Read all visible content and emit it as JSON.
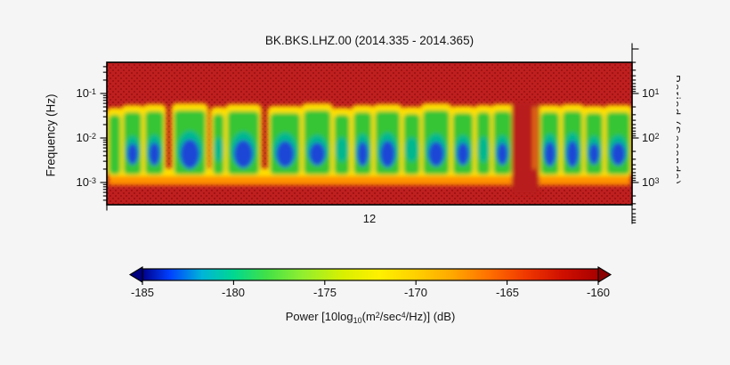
{
  "title": "BK.BKS.LHZ.00 (2014.335 - 2014.365)",
  "axes": {
    "freq": {
      "label": "Frequency (Hz)",
      "ticks": [
        {
          "base": "10",
          "exp": "-1"
        },
        {
          "base": "10",
          "exp": "-2"
        },
        {
          "base": "10",
          "exp": "-3"
        }
      ]
    },
    "period": {
      "label": "Period (Seconds)",
      "ticks": [
        {
          "base": "10",
          "exp": "1"
        },
        {
          "base": "10",
          "exp": "2"
        },
        {
          "base": "10",
          "exp": "3"
        }
      ]
    },
    "time": {
      "tick_label": "12"
    }
  },
  "colorbar": {
    "ticks": [
      "-185",
      "-180",
      "-175",
      "-170",
      "-165",
      "-160"
    ],
    "label_parts": {
      "p1": "Power [10log",
      "sub": "10",
      "p2": "(m",
      "sup1": "2",
      "p3": "/sec",
      "sup2": "4",
      "p4": "/Hz)] (dB)"
    }
  },
  "chart_data": {
    "type": "heatmap",
    "subtype": "seismic-psd-spectrogram",
    "title": "BK.BKS.LHZ.00 (2014.335 - 2014.365)",
    "x_range_decimal_year": [
      2014.335,
      2014.365
    ],
    "x_tick_label": "12",
    "ylabel_left": "Frequency (Hz)",
    "y_left_log_ticks_hz": [
      0.1,
      0.01,
      0.001
    ],
    "y_left_range_hz": [
      0.0003,
      0.5
    ],
    "ylabel_right": "Period (Seconds)",
    "y_right_log_ticks_s": [
      10,
      100,
      1000
    ],
    "colorbar_label": "Power [10log10(m^2/sec^4/Hz)] (dB)",
    "colorbar_ticks_db": [
      -185,
      -180,
      -175,
      -170,
      -165,
      -160
    ],
    "colormap": "jet",
    "colorbar_extend": "both",
    "background_power_db": -160,
    "quiet_band_freq_hz": [
      0.001,
      0.035
    ],
    "quiet_band_power_db": [
      -185,
      -172
    ],
    "colors": {
      "page_bg": "#f5f5f5",
      "red_bg": "#bf1f1f",
      "red_dark": "#a21414",
      "yellow": "#ffdf00",
      "orange": "#ff9100",
      "green": "#35c535",
      "teal": "#00b890",
      "blue": "#1b46d6",
      "cb_left_arrow": "#000080",
      "cb_right_arrow": "#8b0000",
      "frame": "#000000"
    },
    "colormap_stops": [
      [
        0.0,
        "#000089"
      ],
      [
        0.06,
        "#0040ff"
      ],
      [
        0.13,
        "#00b4d8"
      ],
      [
        0.2,
        "#00d890"
      ],
      [
        0.27,
        "#40e048"
      ],
      [
        0.35,
        "#90ee30"
      ],
      [
        0.44,
        "#d8f000"
      ],
      [
        0.52,
        "#fff000"
      ],
      [
        0.6,
        "#ffd000"
      ],
      [
        0.68,
        "#ffa800"
      ],
      [
        0.76,
        "#ff7000"
      ],
      [
        0.84,
        "#f03800"
      ],
      [
        0.92,
        "#d01000"
      ],
      [
        1.0,
        "#a80000"
      ]
    ],
    "segments": [
      {
        "x0": 0.004,
        "x1": 0.026,
        "b": 0.35,
        "t": 56
      },
      {
        "x0": 0.032,
        "x1": 0.066,
        "b": 0.55,
        "t": 53
      },
      {
        "x0": 0.073,
        "x1": 0.108,
        "b": 0.65,
        "t": 52
      },
      {
        "x0": 0.128,
        "x1": 0.188,
        "b": 0.95,
        "t": 51
      },
      {
        "x0": 0.202,
        "x1": 0.223,
        "b": 0.45,
        "t": 55
      },
      {
        "x0": 0.23,
        "x1": 0.29,
        "b": 0.88,
        "t": 52
      },
      {
        "x0": 0.311,
        "x1": 0.368,
        "b": 0.8,
        "t": 54
      },
      {
        "x0": 0.375,
        "x1": 0.426,
        "b": 0.62,
        "t": 51
      },
      {
        "x0": 0.433,
        "x1": 0.462,
        "b": 0.45,
        "t": 56
      },
      {
        "x0": 0.47,
        "x1": 0.504,
        "b": 0.72,
        "t": 53
      },
      {
        "x0": 0.511,
        "x1": 0.558,
        "b": 0.82,
        "t": 52
      },
      {
        "x0": 0.565,
        "x1": 0.596,
        "b": 0.45,
        "t": 55
      },
      {
        "x0": 0.602,
        "x1": 0.652,
        "b": 0.72,
        "t": 51
      },
      {
        "x0": 0.659,
        "x1": 0.697,
        "b": 0.62,
        "t": 54
      },
      {
        "x0": 0.704,
        "x1": 0.73,
        "b": 0.5,
        "t": 53
      },
      {
        "x0": 0.736,
        "x1": 0.77,
        "b": 0.6,
        "t": 52
      },
      {
        "x0": 0.826,
        "x1": 0.861,
        "b": 0.72,
        "t": 53
      },
      {
        "x0": 0.868,
        "x1": 0.905,
        "b": 0.82,
        "t": 52
      },
      {
        "x0": 0.911,
        "x1": 0.944,
        "b": 0.55,
        "t": 54
      },
      {
        "x0": 0.951,
        "x1": 0.996,
        "b": 0.62,
        "t": 53
      }
    ],
    "full_gaps": [
      {
        "x0": 0.771,
        "x1": 0.823
      }
    ],
    "wisp_x": 0.814
  }
}
